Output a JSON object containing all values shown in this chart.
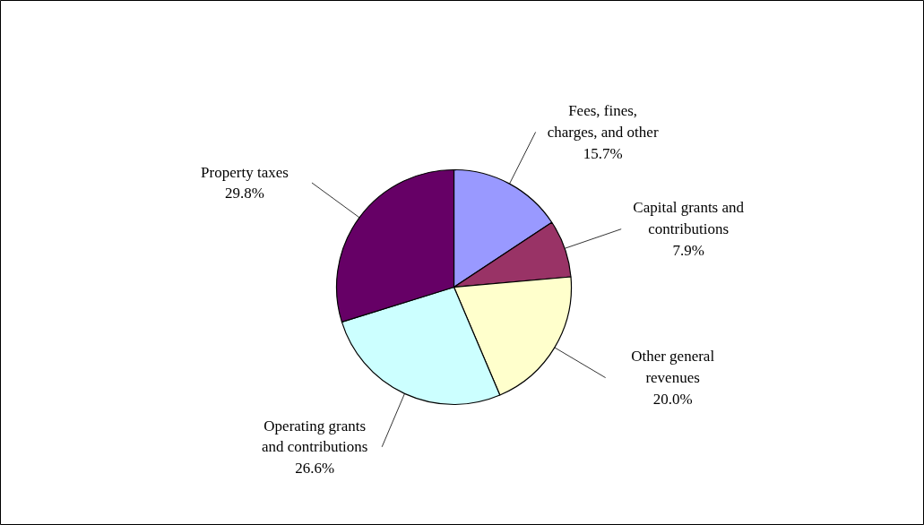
{
  "chart_data": {
    "type": "pie",
    "categories": [
      "Fees, fines, charges, and other",
      "Capital grants and contributions",
      "Other general revenues",
      "Operating grants and contributions",
      "Property taxes"
    ],
    "values": [
      15.7,
      7.9,
      20.0,
      26.6,
      29.8
    ],
    "colors": [
      "#9999ff",
      "#993366",
      "#ffffcc",
      "#ccffff",
      "#660066"
    ],
    "value_labels": [
      "15.7%",
      "7.9%",
      "20.0%",
      "26.6%",
      "29.8%"
    ]
  }
}
